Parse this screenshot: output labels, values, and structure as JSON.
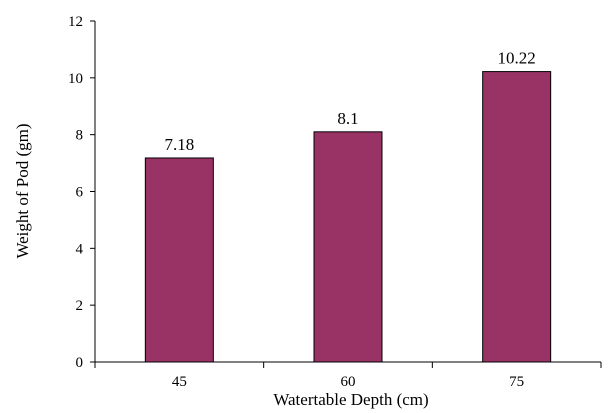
{
  "chart_data": {
    "type": "bar",
    "title": "",
    "xlabel": "Watertable Depth (cm)",
    "ylabel": "Weight of Pod (gm)",
    "categories": [
      "45",
      "60",
      "75"
    ],
    "series": [
      {
        "values": [
          7.18,
          8.1,
          10.22
        ]
      }
    ],
    "data_labels": [
      "7.18",
      "8.1",
      "10.22"
    ],
    "ylim": [
      0,
      12
    ],
    "yticks": [
      0,
      2,
      4,
      6,
      8,
      10,
      12
    ],
    "grid": false,
    "legend": "none",
    "colors": {
      "bar": "#993366",
      "bar_edge": "#000000"
    }
  }
}
